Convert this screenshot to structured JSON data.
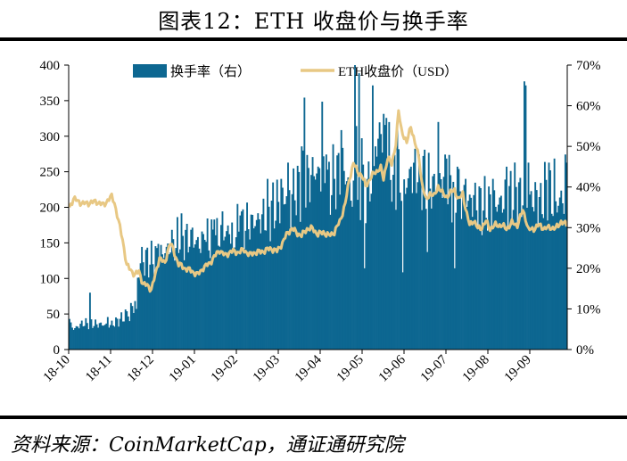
{
  "title": "图表12：ETH 收盘价与换手率",
  "source": "资料来源：CoinMarketCap，通证通研究院",
  "colors": {
    "bar": "#0d6791",
    "line": "#e8c884"
  },
  "chart_data": {
    "type": "bar+line",
    "x_tick_labels": [
      "18-10",
      "18-11",
      "18-12",
      "19-01",
      "19-02",
      "19-03",
      "19-04",
      "19-05",
      "19-06",
      "19-07",
      "19-08",
      "19-09"
    ],
    "left_axis": {
      "ylim": [
        0,
        400
      ],
      "ticks": [
        0,
        50,
        100,
        150,
        200,
        250,
        300,
        350,
        400
      ]
    },
    "right_axis": {
      "ylim": [
        0,
        70
      ],
      "ticks": [
        "0%",
        "10%",
        "20%",
        "30%",
        "40%",
        "50%",
        "60%",
        "70%"
      ]
    },
    "legend_position": "top",
    "series": [
      {
        "name": "换手率（右）",
        "type": "bar",
        "axis": "right",
        "unit": "%",
        "keyframes": [
          [
            0,
            7
          ],
          [
            3,
            5
          ],
          [
            10,
            6.5
          ],
          [
            30,
            6
          ],
          [
            40,
            8
          ],
          [
            48,
            12
          ],
          [
            52,
            22
          ],
          [
            60,
            22
          ],
          [
            70,
            24
          ],
          [
            80,
            28
          ],
          [
            95,
            26
          ],
          [
            110,
            28
          ],
          [
            125,
            30
          ],
          [
            140,
            32
          ],
          [
            150,
            35
          ],
          [
            160,
            38
          ],
          [
            170,
            40
          ],
          [
            180,
            44
          ],
          [
            190,
            40
          ],
          [
            200,
            45
          ],
          [
            210,
            35
          ],
          [
            222,
            42
          ],
          [
            228,
            55
          ],
          [
            235,
            45
          ],
          [
            245,
            40
          ],
          [
            255,
            45
          ],
          [
            265,
            40
          ],
          [
            275,
            42
          ],
          [
            285,
            38
          ],
          [
            295,
            36
          ],
          [
            305,
            35
          ],
          [
            315,
            36
          ],
          [
            325,
            38
          ],
          [
            335,
            37
          ],
          [
            345,
            37
          ],
          [
            350,
            40
          ],
          [
            355,
            35
          ],
          [
            360,
            37
          ],
          [
            364,
            37
          ]
        ],
        "spikes": [
          [
            15,
            14
          ],
          [
            28,
            8
          ],
          [
            47,
            9
          ],
          [
            49,
            10
          ],
          [
            65,
            26
          ],
          [
            78,
            25
          ],
          [
            90,
            30
          ],
          [
            99,
            27
          ],
          [
            106,
            32
          ],
          [
            112,
            34
          ],
          [
            125,
            33
          ],
          [
            145,
            42
          ],
          [
            155,
            42
          ],
          [
            160,
            46
          ],
          [
            170,
            50
          ],
          [
            172,
            62
          ],
          [
            185,
            61
          ],
          [
            188,
            48
          ],
          [
            194,
            42
          ],
          [
            199,
            54
          ],
          [
            209,
            70
          ],
          [
            210,
            55
          ],
          [
            212,
            68
          ],
          [
            214,
            52
          ],
          [
            222,
            65
          ],
          [
            224,
            50
          ],
          [
            230,
            58
          ],
          [
            232,
            57
          ],
          [
            237,
            43
          ],
          [
            240,
            55
          ],
          [
            250,
            45
          ],
          [
            256,
            48
          ],
          [
            262,
            49
          ],
          [
            270,
            56
          ],
          [
            276,
            47
          ],
          [
            284,
            45
          ],
          [
            290,
            42
          ],
          [
            296,
            38
          ],
          [
            310,
            42
          ],
          [
            320,
            45
          ],
          [
            327,
            40
          ],
          [
            333,
            66
          ],
          [
            334,
            65
          ],
          [
            336,
            46
          ],
          [
            345,
            41
          ],
          [
            351,
            46
          ],
          [
            355,
            47
          ],
          [
            363,
            48
          ],
          [
            364,
            46
          ]
        ],
        "dips": [
          [
            44,
            7
          ],
          [
            120,
            25
          ],
          [
            162,
            30
          ],
          [
            216,
            20
          ],
          [
            244,
            19
          ],
          [
            262,
            24
          ],
          [
            282,
            20
          ]
        ]
      },
      {
        "name": "ETH收盘价（USD）",
        "type": "line",
        "axis": "left",
        "unit": "USD",
        "keyframes": [
          [
            0,
            200
          ],
          [
            3,
            212
          ],
          [
            10,
            205
          ],
          [
            20,
            208
          ],
          [
            25,
            203
          ],
          [
            28,
            210
          ],
          [
            31,
            215
          ],
          [
            33,
            207
          ],
          [
            36,
            180
          ],
          [
            39,
            155
          ],
          [
            42,
            118
          ],
          [
            45,
            112
          ],
          [
            48,
            105
          ],
          [
            51,
            110
          ],
          [
            54,
            92
          ],
          [
            57,
            90
          ],
          [
            60,
            85
          ],
          [
            63,
            105
          ],
          [
            66,
            130
          ],
          [
            70,
            120
          ],
          [
            72,
            140
          ],
          [
            74,
            150
          ],
          [
            76,
            140
          ],
          [
            80,
            120
          ],
          [
            84,
            115
          ],
          [
            90,
            110
          ],
          [
            94,
            105
          ],
          [
            98,
            115
          ],
          [
            102,
            120
          ],
          [
            106,
            130
          ],
          [
            110,
            140
          ],
          [
            114,
            132
          ],
          [
            118,
            138
          ],
          [
            124,
            137
          ],
          [
            128,
            140
          ],
          [
            132,
            133
          ],
          [
            136,
            137
          ],
          [
            140,
            137
          ],
          [
            144,
            140
          ],
          [
            148,
            142
          ],
          [
            152,
            138
          ],
          [
            156,
            150
          ],
          [
            160,
            165
          ],
          [
            163,
            170
          ],
          [
            166,
            165
          ],
          [
            170,
            160
          ],
          [
            174,
            170
          ],
          [
            178,
            170
          ],
          [
            182,
            162
          ],
          [
            186,
            165
          ],
          [
            190,
            160
          ],
          [
            194,
            165
          ],
          [
            198,
            180
          ],
          [
            202,
            205
          ],
          [
            205,
            240
          ],
          [
            208,
            262
          ],
          [
            211,
            250
          ],
          [
            214,
            245
          ],
          [
            217,
            230
          ],
          [
            220,
            240
          ],
          [
            224,
            250
          ],
          [
            228,
            255
          ],
          [
            230,
            240
          ],
          [
            233,
            270
          ],
          [
            236,
            260
          ],
          [
            239,
            290
          ],
          [
            241,
            335
          ],
          [
            243,
            310
          ],
          [
            245,
            300
          ],
          [
            247,
            290
          ],
          [
            250,
            315
          ],
          [
            253,
            290
          ],
          [
            256,
            270
          ],
          [
            258,
            235
          ],
          [
            261,
            210
          ],
          [
            264,
            220
          ],
          [
            267,
            215
          ],
          [
            270,
            230
          ],
          [
            273,
            220
          ],
          [
            276,
            215
          ],
          [
            279,
            220
          ],
          [
            282,
            225
          ],
          [
            285,
            210
          ],
          [
            288,
            220
          ],
          [
            291,
            190
          ],
          [
            293,
            175
          ],
          [
            296,
            182
          ],
          [
            299,
            170
          ],
          [
            302,
            172
          ],
          [
            305,
            180
          ],
          [
            308,
            170
          ],
          [
            312,
            175
          ],
          [
            316,
            175
          ],
          [
            320,
            170
          ],
          [
            324,
            178
          ],
          [
            328,
            175
          ],
          [
            332,
            196
          ],
          [
            334,
            185
          ],
          [
            336,
            168
          ],
          [
            340,
            170
          ],
          [
            344,
            175
          ],
          [
            348,
            170
          ],
          [
            352,
            172
          ],
          [
            356,
            170
          ],
          [
            360,
            180
          ],
          [
            364,
            175
          ]
        ]
      }
    ]
  }
}
